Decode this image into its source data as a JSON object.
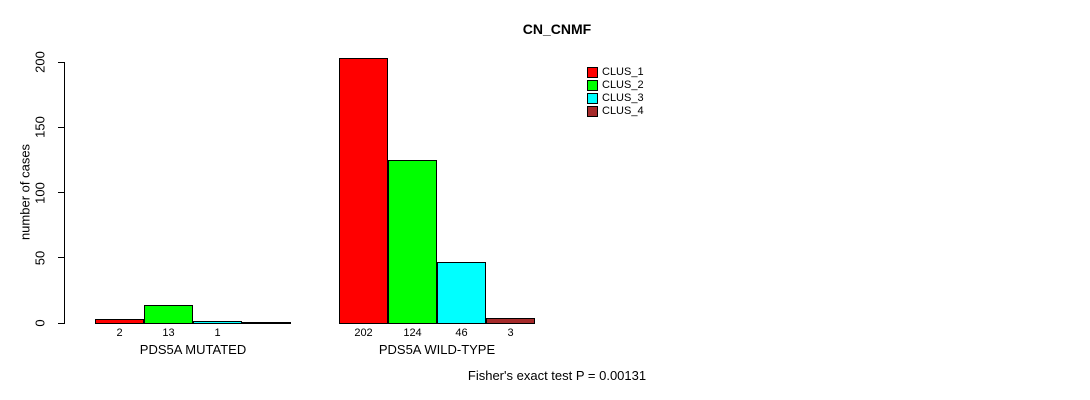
{
  "chart_data": {
    "type": "bar",
    "title": "CN_CNMF",
    "ylabel": "number of cases",
    "xlabel": "",
    "ylim": [
      0,
      200
    ],
    "yticks": [
      0,
      50,
      100,
      150,
      200
    ],
    "grid": false,
    "legend_position": "top-right",
    "categories": [
      "PDS5A MUTATED",
      "PDS5A WILD-TYPE"
    ],
    "series": [
      {
        "name": "CLUS_1",
        "color": "#FF0000",
        "values": [
          2,
          202
        ]
      },
      {
        "name": "CLUS_2",
        "color": "#00FF00",
        "values": [
          13,
          124
        ]
      },
      {
        "name": "CLUS_3",
        "color": "#00FFFF",
        "values": [
          1,
          46
        ]
      },
      {
        "name": "CLUS_4",
        "color": "#A52A2A",
        "values": [
          0,
          3
        ]
      }
    ],
    "bar_labels": [
      [
        "2",
        "13",
        "1",
        ""
      ],
      [
        "202",
        "124",
        "46",
        "3"
      ]
    ],
    "annotation": "Fisher's exact test P = 0.00131"
  }
}
